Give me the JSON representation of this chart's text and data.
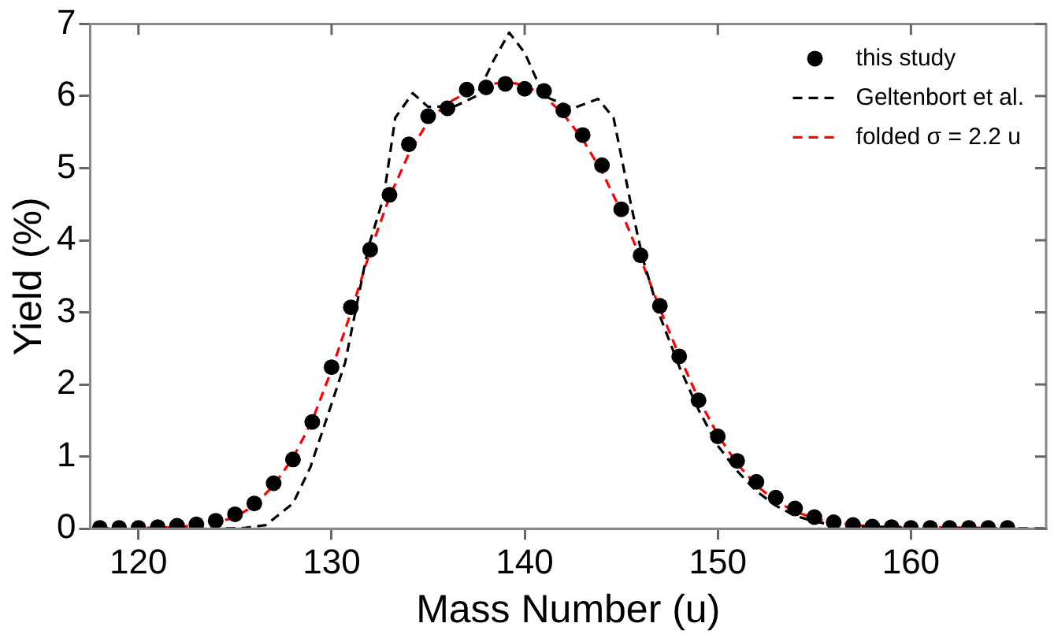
{
  "chart_data": {
    "type": "scatter",
    "xlabel": "Mass Number (u)",
    "ylabel": "Yield (%)",
    "xlim": [
      117.5,
      167
    ],
    "xticks": [
      120,
      130,
      140,
      150,
      160
    ],
    "ylim": [
      0,
      7
    ],
    "yticks": [
      0,
      1,
      2,
      3,
      4,
      5,
      6,
      7
    ],
    "grid": false,
    "legend": "top right",
    "marker": "circle",
    "series": [
      {
        "name": "this study",
        "color": "#000000",
        "x": [
          118,
          119,
          120,
          121,
          122,
          123,
          124,
          125,
          126,
          127,
          128,
          129,
          130,
          131,
          132,
          133,
          134,
          135,
          136,
          137,
          138,
          139,
          140,
          141,
          142,
          143,
          144,
          145,
          146,
          147,
          148,
          149,
          150,
          151,
          152,
          153,
          154,
          155,
          156,
          157,
          158,
          159,
          160,
          161,
          162,
          163,
          164,
          165
        ],
        "values": [
          0.01,
          0.01,
          0.01,
          0.02,
          0.04,
          0.06,
          0.11,
          0.2,
          0.35,
          0.63,
          0.96,
          1.48,
          2.24,
          3.07,
          3.87,
          4.63,
          5.33,
          5.72,
          5.83,
          6.09,
          6.12,
          6.17,
          6.1,
          6.07,
          5.8,
          5.46,
          5.04,
          4.43,
          3.79,
          3.09,
          2.39,
          1.78,
          1.28,
          0.94,
          0.65,
          0.43,
          0.28,
          0.16,
          0.09,
          0.05,
          0.03,
          0.02,
          0.01,
          0.01,
          0.01,
          0.01,
          0.01,
          0.01
        ]
      },
      {
        "name": "Geltenbort et al.",
        "type": "line",
        "color": "#000000",
        "line_style": "dashed",
        "marker": "none",
        "x": [
          118,
          124,
          125.5,
          126.6,
          128,
          128.9,
          129.8,
          130.7,
          131.9,
          132.7,
          133.3,
          134.2,
          135,
          136.4,
          137.5,
          138.4,
          139.2,
          140,
          141,
          142.5,
          143.8,
          144.6,
          145.5,
          146.1,
          147,
          148,
          149,
          150,
          151,
          152,
          153,
          154,
          155,
          156,
          158,
          160,
          167
        ],
        "values": [
          0,
          0,
          0.01,
          0.05,
          0.35,
          0.85,
          1.57,
          2.3,
          3.9,
          4.6,
          5.7,
          6.04,
          5.85,
          5.86,
          6.0,
          6.5,
          6.88,
          6.6,
          6.0,
          5.83,
          5.96,
          5.7,
          4.5,
          3.76,
          2.95,
          2.25,
          1.65,
          1.15,
          0.8,
          0.52,
          0.32,
          0.18,
          0.1,
          0.05,
          0.02,
          0.01,
          0
        ]
      },
      {
        "name": "folded σ = 2.2 u",
        "type": "line",
        "color": "#ff0000",
        "line_style": "dashed",
        "marker": "none",
        "x": [
          118,
          122,
          124,
          125,
          126,
          127,
          128,
          129,
          130,
          131,
          132,
          133,
          134,
          135,
          136,
          137,
          138,
          139,
          140,
          141,
          142,
          143,
          144,
          145,
          146,
          147,
          148,
          149,
          150,
          151,
          152,
          153,
          154,
          155,
          156,
          158,
          167
        ],
        "values": [
          0,
          0.02,
          0.08,
          0.16,
          0.32,
          0.6,
          0.98,
          1.5,
          2.2,
          3.0,
          3.85,
          4.6,
          5.2,
          5.65,
          5.9,
          6.05,
          6.15,
          6.2,
          6.15,
          6.0,
          5.75,
          5.4,
          4.95,
          4.4,
          3.75,
          3.05,
          2.4,
          1.8,
          1.3,
          0.9,
          0.6,
          0.38,
          0.24,
          0.14,
          0.08,
          0.03,
          0
        ]
      }
    ]
  }
}
